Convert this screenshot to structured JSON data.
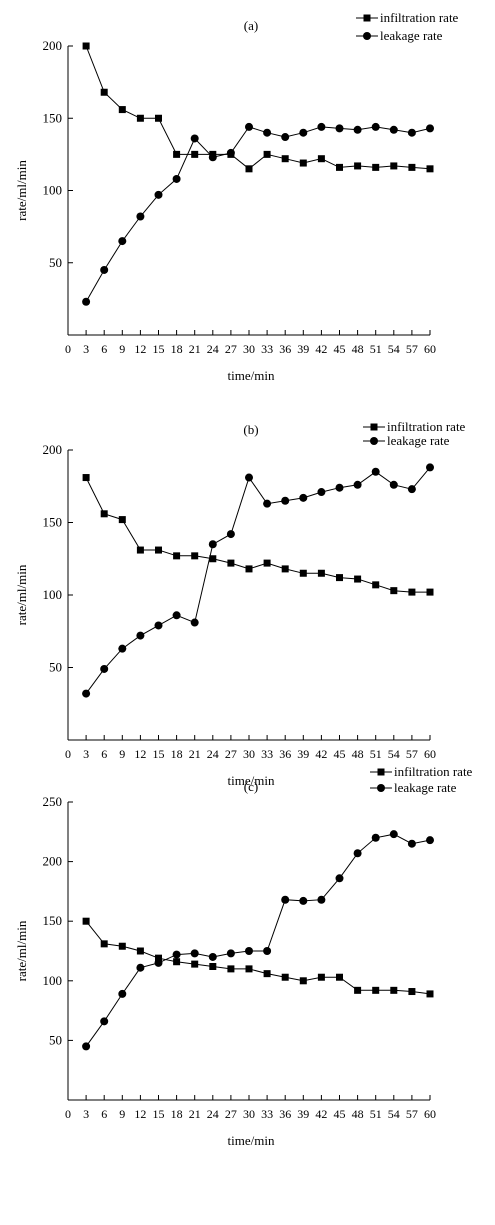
{
  "chart_data": [
    {
      "type": "line",
      "title": "(a)",
      "xlabel": "time/min",
      "ylabel": "rate/ml/min",
      "ylim": [
        0,
        200
      ],
      "yticks": [
        50,
        100,
        150,
        200
      ],
      "xticks": [
        0,
        3,
        6,
        9,
        12,
        15,
        18,
        21,
        24,
        27,
        30,
        33,
        36,
        39,
        42,
        45,
        48,
        51,
        54,
        57,
        60
      ],
      "x": [
        3,
        6,
        9,
        12,
        15,
        18,
        21,
        24,
        27,
        30,
        33,
        36,
        39,
        42,
        45,
        48,
        51,
        54,
        57,
        60
      ],
      "grid": false,
      "legend_position": "top-right",
      "series": [
        {
          "name": "infiltration rate",
          "marker": "square",
          "values": [
            200,
            168,
            156,
            150,
            150,
            125,
            125,
            125,
            125,
            115,
            125,
            122,
            119,
            122,
            116,
            117,
            116,
            117,
            116,
            115
          ]
        },
        {
          "name": "leakage rate",
          "marker": "circle",
          "values": [
            23,
            45,
            65,
            82,
            97,
            108,
            136,
            123,
            126,
            144,
            140,
            137,
            140,
            144,
            143,
            142,
            144,
            142,
            140,
            143
          ]
        }
      ]
    },
    {
      "type": "line",
      "title": "(b)",
      "xlabel": "time/min",
      "ylabel": "rate/ml/min",
      "ylim": [
        0,
        200
      ],
      "yticks": [
        50,
        100,
        150,
        200
      ],
      "xticks": [
        0,
        3,
        6,
        9,
        12,
        15,
        18,
        21,
        24,
        27,
        30,
        33,
        36,
        39,
        42,
        45,
        48,
        51,
        54,
        57,
        60
      ],
      "x": [
        3,
        6,
        9,
        12,
        15,
        18,
        21,
        24,
        27,
        30,
        33,
        36,
        39,
        42,
        45,
        48,
        51,
        54,
        57,
        60
      ],
      "grid": false,
      "legend_position": "top-right",
      "series": [
        {
          "name": "infiltration rate",
          "marker": "square",
          "values": [
            181,
            156,
            152,
            131,
            131,
            127,
            127,
            125,
            122,
            118,
            122,
            118,
            115,
            115,
            112,
            111,
            107,
            103,
            102,
            102
          ]
        },
        {
          "name": "leakage rate",
          "marker": "circle",
          "values": [
            32,
            49,
            63,
            72,
            79,
            86,
            81,
            135,
            142,
            181,
            163,
            165,
            167,
            171,
            174,
            176,
            185,
            176,
            173,
            188
          ]
        }
      ]
    },
    {
      "type": "line",
      "title": "(c)",
      "xlabel": "time/min",
      "ylabel": "rate/ml/min",
      "ylim": [
        0,
        250
      ],
      "yticks": [
        50,
        100,
        150,
        200,
        250
      ],
      "xticks": [
        0,
        3,
        6,
        9,
        12,
        15,
        18,
        21,
        24,
        27,
        30,
        33,
        36,
        39,
        42,
        45,
        48,
        51,
        54,
        57,
        60
      ],
      "x": [
        3,
        6,
        9,
        12,
        15,
        18,
        21,
        24,
        27,
        30,
        33,
        36,
        39,
        42,
        45,
        48,
        51,
        54,
        57,
        60
      ],
      "grid": false,
      "legend_position": "top-right",
      "series": [
        {
          "name": "infiltration rate",
          "marker": "square",
          "values": [
            150,
            131,
            129,
            125,
            119,
            116,
            114,
            112,
            110,
            110,
            106,
            103,
            100,
            103,
            103,
            92,
            92,
            92,
            91,
            89
          ]
        },
        {
          "name": "leakage rate",
          "marker": "circle",
          "values": [
            45,
            66,
            89,
            111,
            115,
            122,
            123,
            120,
            123,
            125,
            125,
            168,
            167,
            168,
            186,
            207,
            220,
            223,
            215,
            218
          ]
        }
      ]
    }
  ]
}
